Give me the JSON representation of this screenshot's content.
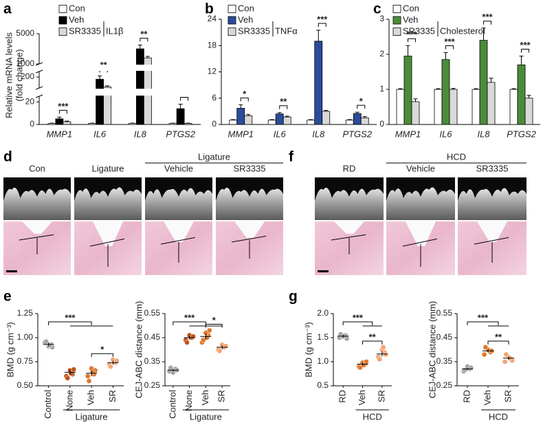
{
  "chart_data": [
    {
      "panel": "a",
      "type": "bar",
      "ylabel": [
        "Relative mRNA levels",
        "(fold change)"
      ],
      "treatment": "IL1β",
      "categories": [
        "MMP1",
        "IL6",
        "IL8",
        "PTGS2"
      ],
      "axis_segments": [
        {
          "ylim": [
            0,
            25
          ],
          "yticks": [
            0,
            20
          ]
        },
        {
          "ylim": [
            100,
            250
          ],
          "yticks": [
            200
          ]
        },
        {
          "ylim": [
            1000,
            5000
          ],
          "yticks": [
            1000,
            5000
          ]
        }
      ],
      "series": [
        {
          "name": "Con",
          "color": "#ffffff",
          "values": [
            1,
            1,
            1,
            1
          ],
          "errors": [
            0.2,
            0.2,
            0.2,
            0.2
          ]
        },
        {
          "name": "Veh",
          "color": "#000000",
          "values": [
            5,
            180,
            3000,
            14
          ],
          "errors": [
            1.5,
            30,
            500,
            4
          ]
        },
        {
          "name": "SR3335",
          "color": "#d9d9d9",
          "values": [
            2.5,
            110,
            1800,
            1
          ],
          "errors": [
            0.5,
            10,
            200,
            0.2
          ]
        }
      ],
      "significance": [
        "***",
        "**",
        "**",
        "**"
      ]
    },
    {
      "panel": "b",
      "type": "bar",
      "treatment": "TNFα",
      "categories": [
        "MMP1",
        "IL6",
        "IL8",
        "PTGS2"
      ],
      "ylim": [
        0,
        24
      ],
      "yticks": [
        0,
        6,
        12,
        18,
        24
      ],
      "series": [
        {
          "name": "Con",
          "color": "#ffffff",
          "values": [
            1,
            1,
            1,
            1
          ],
          "errors": [
            0.1,
            0.1,
            0.1,
            0.1
          ]
        },
        {
          "name": "Veh",
          "color": "#2b4c9c",
          "values": [
            3.7,
            2.4,
            19,
            2.5
          ],
          "errors": [
            0.8,
            0.3,
            2.5,
            0.3
          ]
        },
        {
          "name": "SR3335",
          "color": "#d9d9d9",
          "values": [
            2,
            1.7,
            3,
            1.5
          ],
          "errors": [
            0.3,
            0.2,
            0.2,
            0.3
          ]
        }
      ],
      "significance": [
        "*",
        "**",
        "***",
        "*"
      ]
    },
    {
      "panel": "c",
      "type": "bar",
      "treatment": "Cholesterol",
      "categories": [
        "MMP1",
        "IL6",
        "IL8",
        "PTGS2"
      ],
      "ylim": [
        0,
        3
      ],
      "yticks": [
        0,
        1,
        2,
        3
      ],
      "series": [
        {
          "name": "Con",
          "color": "#ffffff",
          "values": [
            1,
            1,
            1,
            1
          ],
          "errors": [
            0.02,
            0.02,
            0.02,
            0.02
          ]
        },
        {
          "name": "Veh",
          "color": "#4b8b3b",
          "values": [
            1.95,
            1.85,
            2.4,
            1.7
          ],
          "errors": [
            0.3,
            0.2,
            0.35,
            0.25
          ]
        },
        {
          "name": "SR3335",
          "color": "#d9d9d9",
          "values": [
            0.65,
            1,
            1.2,
            0.75
          ],
          "errors": [
            0.08,
            0.03,
            0.12,
            0.08
          ]
        }
      ],
      "significance": [
        "***",
        "***",
        "***",
        "***"
      ]
    },
    {
      "panel": "e",
      "type": "dot",
      "ylabel": "BMD (g cm⁻³)",
      "group_label": "Ligature",
      "categories": [
        "Control",
        "None",
        "Veh",
        "SR"
      ],
      "ylim": [
        0.5,
        1.25
      ],
      "yticks": [
        {
          "value": 0.5,
          "label": "0.50"
        },
        {
          "value": 0.75,
          "label": "0.75"
        },
        {
          "value": 1,
          "label": "1.00"
        },
        {
          "value": 1.25,
          "label": "1.25"
        }
      ],
      "colors": [
        "#a6a6a6",
        "#c0561b",
        "#e0782f",
        "#f4a675"
      ],
      "values": [
        0.93,
        0.64,
        0.63,
        0.74
      ],
      "errors": [
        0.02,
        0.03,
        0.03,
        0.02
      ],
      "points": [
        [
          0.95,
          0.93,
          0.91,
          0.96,
          0.9,
          0.92
        ],
        [
          0.6,
          0.62,
          0.66,
          0.58,
          0.67,
          0.63
        ],
        [
          0.6,
          0.62,
          0.68,
          0.55,
          0.66,
          0.64
        ],
        [
          0.72,
          0.74,
          0.77,
          0.7,
          0.76
        ]
      ],
      "significance": [
        "***",
        "*"
      ]
    },
    {
      "type": "dot",
      "ylabel": "CEJ-ABC distance (mm)",
      "group_label": "Ligature",
      "categories": [
        "Control",
        "None",
        "Veh",
        "SR"
      ],
      "ylim": [
        0.25,
        0.55
      ],
      "yticks": [
        0.25,
        0.35,
        0.45,
        0.55
      ],
      "colors": [
        "#a6a6a6",
        "#c0561b",
        "#e0782f",
        "#f4a675"
      ],
      "values": [
        0.315,
        0.45,
        0.455,
        0.41
      ],
      "errors": [
        0.005,
        0.008,
        0.012,
        0.008
      ],
      "points": [
        [
          0.31,
          0.32,
          0.305,
          0.325,
          0.315
        ],
        [
          0.44,
          0.45,
          0.46,
          0.43,
          0.455
        ],
        [
          0.43,
          0.46,
          0.47,
          0.44,
          0.48,
          0.45
        ],
        [
          0.4,
          0.41,
          0.42,
          0.395,
          0.415
        ]
      ],
      "significance": [
        "***",
        "*"
      ]
    },
    {
      "panel": "g",
      "type": "dot",
      "ylabel": "BMD (g cm⁻³)",
      "group_label": "HCD",
      "categories": [
        "RD",
        "Veh",
        "SR"
      ],
      "ylim": [
        0.5,
        2
      ],
      "yticks": [
        0.5,
        {
          "value": 1,
          "label": "1.0"
        },
        1.5,
        {
          "value": 2,
          "label": "2.0"
        }
      ],
      "colors": [
        "#a6a6a6",
        "#e0782f",
        "#f4a675"
      ],
      "values": [
        1.53,
        0.95,
        1.16
      ],
      "errors": [
        0.03,
        0.03,
        0.05
      ],
      "points": [
        [
          1.5,
          1.55,
          1.52,
          1.57,
          1.48,
          1.54
        ],
        [
          0.9,
          0.95,
          0.98,
          0.88,
          1,
          0.93
        ],
        [
          1.1,
          1.2,
          1.25,
          1.05,
          1.15,
          1.3
        ]
      ],
      "significance": [
        "***",
        "**"
      ]
    },
    {
      "type": "dot",
      "ylabel": "CEJ-ABC distance (mm)",
      "group_label": "HCD",
      "categories": [
        "RD",
        "Veh",
        "SR"
      ],
      "ylim": [
        0.25,
        0.55
      ],
      "yticks": [
        0.25,
        0.35,
        0.45,
        0.55
      ],
      "colors": [
        "#a6a6a6",
        "#e0782f",
        "#f4a675"
      ],
      "values": [
        0.32,
        0.395,
        0.365
      ],
      "errors": [
        0.005,
        0.006,
        0.007
      ],
      "points": [
        [
          0.31,
          0.32,
          0.33,
          0.315,
          0.325
        ],
        [
          0.38,
          0.39,
          0.4,
          0.41,
          0.395
        ],
        [
          0.35,
          0.36,
          0.37,
          0.38,
          0.355,
          0.365
        ]
      ],
      "significance": [
        "***",
        "**"
      ]
    }
  ],
  "images": [
    {
      "panel": "d",
      "header": "Ligature",
      "columns": [
        "Con",
        "Ligature",
        "Vehicle",
        "SR3335"
      ]
    },
    {
      "panel": "f",
      "header": "HCD",
      "columns": [
        "RD",
        "Vehicle",
        "SR3335"
      ]
    }
  ]
}
